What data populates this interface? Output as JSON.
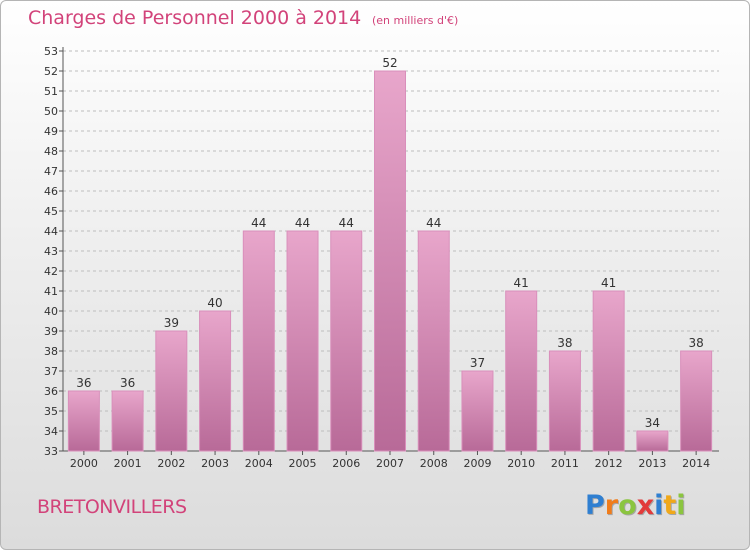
{
  "title": "Charges de Personnel 2000 à 2014",
  "subtitle": "(en milliers d'€)",
  "commune": "BRETONVILLERS",
  "logo": {
    "text": "Proxiti",
    "colors": [
      "#2f7fd1",
      "#f07c1a",
      "#8bc53f",
      "#e23b3b",
      "#2f7fd1",
      "#f0a81a",
      "#8bc53f"
    ]
  },
  "colors": {
    "accent": "#d2437a",
    "bar_top": "#e8a6cb",
    "bar_bottom": "#b86a98",
    "bar_edge": "#d98fbb"
  },
  "chart_data": {
    "type": "bar",
    "categories": [
      "2000",
      "2001",
      "2002",
      "2003",
      "2004",
      "2005",
      "2006",
      "2007",
      "2008",
      "2009",
      "2010",
      "2011",
      "2012",
      "2013",
      "2014"
    ],
    "values": [
      36,
      36,
      39,
      40,
      44,
      44,
      44,
      52,
      44,
      37,
      41,
      38,
      41,
      34,
      38
    ],
    "title": "Charges de Personnel 2000 à 2014",
    "subtitle": "(en milliers d'€)",
    "xlabel": "",
    "ylabel": "",
    "ylim": [
      33,
      53
    ],
    "yticks": [
      33,
      34,
      35,
      36,
      37,
      38,
      39,
      40,
      41,
      42,
      43,
      44,
      45,
      46,
      47,
      48,
      49,
      50,
      51,
      52,
      53
    ],
    "grid": "horizontal dashed",
    "legend": "none"
  }
}
